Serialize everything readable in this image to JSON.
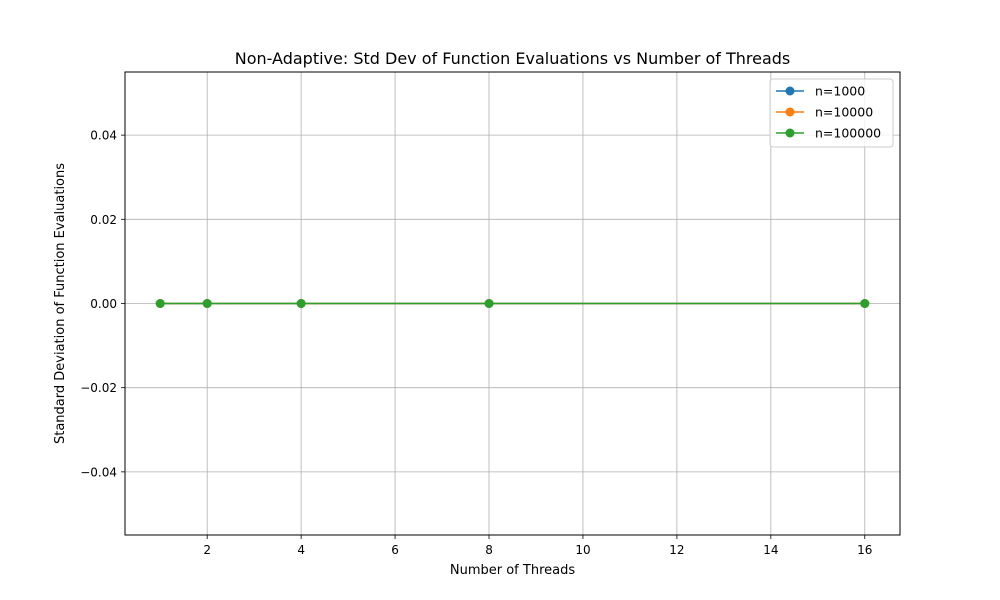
{
  "chart_data": {
    "type": "line",
    "title": "Non-Adaptive: Std Dev of Function Evaluations vs Number of Threads",
    "xlabel": "Number of Threads",
    "ylabel": "Standard Deviation of Function Evaluations",
    "x": [
      1,
      2,
      4,
      8,
      16
    ],
    "xlim": [
      0.25,
      16.75
    ],
    "ylim": [
      -0.055,
      0.055
    ],
    "xticks": [
      2,
      4,
      6,
      8,
      10,
      12,
      14,
      16
    ],
    "xtick_labels": [
      "2",
      "4",
      "6",
      "8",
      "10",
      "12",
      "14",
      "16"
    ],
    "yticks": [
      -0.04,
      -0.02,
      0.0,
      0.02,
      0.04
    ],
    "ytick_labels": [
      "−0.04",
      "−0.02",
      "0.00",
      "0.02",
      "0.04"
    ],
    "grid": true,
    "legend_position": "top-right",
    "series": [
      {
        "name": "n=1000",
        "color": "#1f77b4",
        "marker": "circle",
        "values": [
          0,
          0,
          0,
          0,
          0
        ]
      },
      {
        "name": "n=10000",
        "color": "#ff7f0e",
        "marker": "circle",
        "values": [
          0,
          0,
          0,
          0,
          0
        ]
      },
      {
        "name": "n=100000",
        "color": "#2ca02c",
        "marker": "circle",
        "values": [
          0,
          0,
          0,
          0,
          0
        ]
      }
    ]
  }
}
